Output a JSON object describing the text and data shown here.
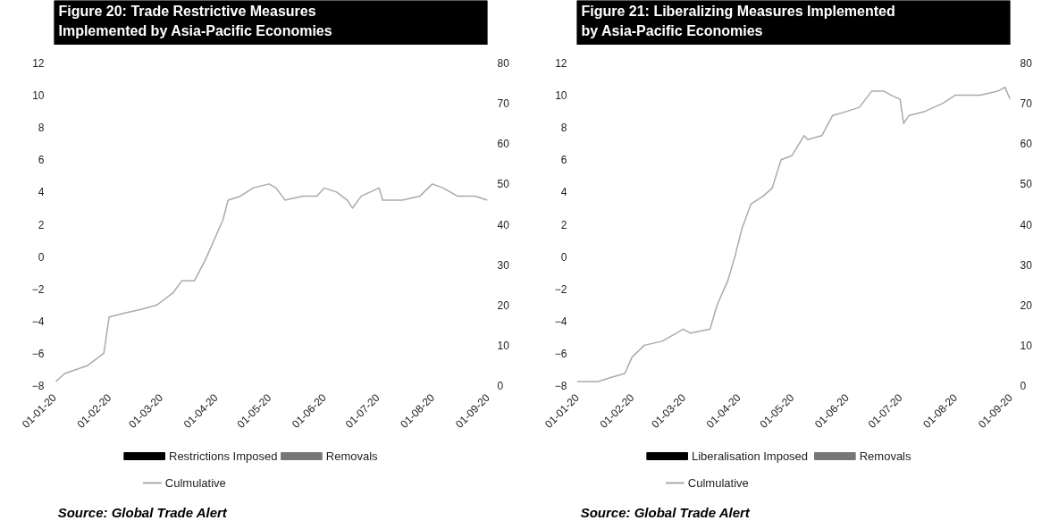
{
  "chart_data": [
    {
      "type": "bar",
      "title": "Figure 20: Trade Restrictive Measures\nImplemented by Asia-Pacific Economies",
      "annotations": [
        "Source: Global Trade Alert"
      ],
      "ylim": [
        -8,
        12
      ],
      "yticks": [
        -8,
        -6,
        -4,
        -2,
        0,
        2,
        4,
        6,
        8,
        10,
        12
      ],
      "y2lim": [
        0,
        80
      ],
      "y2ticks": [
        0,
        10,
        20,
        30,
        40,
        50,
        60,
        70,
        80
      ],
      "xlim": [
        "2020-01-01",
        "2020-09-01"
      ],
      "xticks": [
        {
          "value": "2020-01-01",
          "label": "01-01-20"
        },
        {
          "value": "2020-02-01",
          "label": "01-02-20"
        },
        {
          "value": "2020-03-01",
          "label": "01-03-20"
        },
        {
          "value": "2020-04-01",
          "label": "01-04-20"
        },
        {
          "value": "2020-05-01",
          "label": "01-05-20"
        },
        {
          "value": "2020-06-01",
          "label": "01-06-20"
        },
        {
          "value": "2020-07-01",
          "label": "01-07-20"
        },
        {
          "value": "2020-08-01",
          "label": "01-08-20"
        },
        {
          "value": "2020-09-01",
          "label": "01-09-20"
        }
      ],
      "grid": false,
      "legend": "bottom",
      "series": [
        {
          "name": "Restrictions Imposed",
          "color": "#000000"
        },
        {
          "name": "Removals",
          "color": "#777777"
        },
        {
          "name": "Culmulative",
          "type": "line",
          "axis": "y2",
          "color": "#aaaaaa",
          "x": [
            "2020-01-02",
            "2020-01-07",
            "2020-01-20",
            "2020-01-29",
            "2020-02-01",
            "2020-02-10",
            "2020-02-20",
            "2020-02-28",
            "2020-03-08",
            "2020-03-13",
            "2020-03-20",
            "2020-03-26",
            "2020-04-01",
            "2020-04-05",
            "2020-04-08",
            "2020-04-15",
            "2020-04-22",
            "2020-05-01",
            "2020-05-05",
            "2020-05-10",
            "2020-05-20",
            "2020-05-28",
            "2020-06-01",
            "2020-06-08",
            "2020-06-14",
            "2020-06-17",
            "2020-06-22",
            "2020-07-02",
            "2020-07-04",
            "2020-07-15",
            "2020-07-25",
            "2020-08-01",
            "2020-08-07",
            "2020-08-15",
            "2020-08-25",
            "2020-09-01"
          ],
          "values": [
            1,
            3,
            5,
            8,
            17,
            18,
            19,
            20,
            23,
            26,
            26,
            31,
            37,
            41,
            46,
            47,
            49,
            50,
            49,
            46,
            47,
            47,
            49,
            48,
            46,
            44,
            47,
            49,
            46,
            46,
            47,
            50,
            49,
            47,
            47,
            46
          ]
        }
      ]
    },
    {
      "type": "bar",
      "title": "Figure 21: Liberalizing Measures Implemented\nby Asia-Pacific Economies",
      "annotations": [
        "Source: Global Trade Alert"
      ],
      "ylim": [
        -8,
        12
      ],
      "yticks": [
        -8,
        -6,
        -4,
        -2,
        0,
        2,
        4,
        6,
        8,
        10,
        12
      ],
      "y2lim": [
        0,
        80
      ],
      "y2ticks": [
        0,
        10,
        20,
        30,
        40,
        50,
        60,
        70,
        80
      ],
      "xlim": [
        "2020-01-01",
        "2020-09-01"
      ],
      "xticks": [
        {
          "value": "2020-01-01",
          "label": "01-01-20"
        },
        {
          "value": "2020-02-01",
          "label": "01-02-20"
        },
        {
          "value": "2020-03-01",
          "label": "01-03-20"
        },
        {
          "value": "2020-04-01",
          "label": "01-04-20"
        },
        {
          "value": "2020-05-01",
          "label": "01-05-20"
        },
        {
          "value": "2020-06-01",
          "label": "01-06-20"
        },
        {
          "value": "2020-07-01",
          "label": "01-07-20"
        },
        {
          "value": "2020-08-01",
          "label": "01-08-20"
        },
        {
          "value": "2020-09-01",
          "label": "01-09-20"
        }
      ],
      "grid": false,
      "legend": "bottom",
      "series": [
        {
          "name": "Liberalisation Imposed",
          "color": "#000000"
        },
        {
          "name": "Removals",
          "color": "#777777"
        },
        {
          "name": "Culmulative",
          "type": "line",
          "axis": "y2",
          "color": "#aaaaaa",
          "x": [
            "2020-01-01",
            "2020-01-13",
            "2020-01-20",
            "2020-01-28",
            "2020-02-01",
            "2020-02-08",
            "2020-02-18",
            "2020-02-26",
            "2020-03-01",
            "2020-03-05",
            "2020-03-16",
            "2020-03-20",
            "2020-03-26",
            "2020-03-30",
            "2020-04-03",
            "2020-04-08",
            "2020-04-15",
            "2020-04-20",
            "2020-04-25",
            "2020-05-01",
            "2020-05-08",
            "2020-05-10",
            "2020-05-18",
            "2020-05-24",
            "2020-06-01",
            "2020-06-08",
            "2020-06-15",
            "2020-06-22",
            "2020-06-26",
            "2020-07-01",
            "2020-07-03",
            "2020-07-06",
            "2020-07-15",
            "2020-07-25",
            "2020-08-01",
            "2020-08-15",
            "2020-08-25",
            "2020-08-29",
            "2020-09-01"
          ],
          "values": [
            1,
            1,
            2,
            3,
            7,
            10,
            11,
            13,
            14,
            13,
            14,
            20,
            26,
            32,
            39,
            45,
            47,
            49,
            56,
            57,
            62,
            61,
            62,
            67,
            68,
            69,
            73,
            73,
            72,
            71,
            65,
            67,
            68,
            70,
            72,
            72,
            73,
            74,
            71
          ]
        }
      ]
    }
  ]
}
